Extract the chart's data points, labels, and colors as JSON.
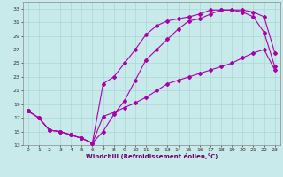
{
  "xlabel": "Windchill (Refroidissement éolien,°C)",
  "xlim": [
    -0.5,
    23.5
  ],
  "ylim": [
    13,
    34
  ],
  "xticks": [
    0,
    1,
    2,
    3,
    4,
    5,
    6,
    7,
    8,
    9,
    10,
    11,
    12,
    13,
    14,
    15,
    16,
    17,
    18,
    19,
    20,
    21,
    22,
    23
  ],
  "yticks": [
    13,
    15,
    17,
    19,
    21,
    23,
    25,
    27,
    29,
    31,
    33
  ],
  "bg_color": "#c8eaea",
  "line_color": "#aa00aa",
  "grid_color": "#a8d8d8",
  "line1_x": [
    0,
    1,
    2,
    3,
    4,
    5,
    6,
    7,
    8,
    9,
    10,
    11,
    12,
    13,
    14,
    15,
    16,
    17,
    18,
    19,
    20,
    21,
    22,
    23
  ],
  "line1_y": [
    18,
    17,
    15.2,
    15,
    14.5,
    14,
    13.3,
    15,
    17.5,
    19.5,
    22.5,
    25.5,
    27,
    28.5,
    30,
    31.2,
    31.5,
    32.2,
    32.8,
    32.8,
    32.8,
    32.5,
    31.8,
    26.5
  ],
  "line2_x": [
    0,
    1,
    2,
    3,
    4,
    5,
    6,
    7,
    8,
    9,
    10,
    11,
    12,
    13,
    14,
    15,
    16,
    17,
    18,
    19,
    20,
    21,
    22,
    23
  ],
  "line2_y": [
    18,
    17,
    15.2,
    15,
    14.5,
    14,
    13.3,
    22,
    23,
    25,
    27,
    29.2,
    30.5,
    31.2,
    31.5,
    31.8,
    32.2,
    32.8,
    32.8,
    32.8,
    32.5,
    31.8,
    29.5,
    24.5
  ],
  "line3_x": [
    0,
    1,
    2,
    3,
    4,
    5,
    6,
    7,
    8,
    9,
    10,
    11,
    12,
    13,
    14,
    15,
    16,
    17,
    18,
    19,
    20,
    21,
    22,
    23
  ],
  "line3_y": [
    18,
    17,
    15.2,
    15,
    14.5,
    14,
    13.3,
    17.2,
    17.8,
    18.5,
    19.2,
    20,
    21,
    22,
    22.5,
    23,
    23.5,
    24,
    24.5,
    25,
    25.8,
    26.5,
    27,
    24
  ]
}
